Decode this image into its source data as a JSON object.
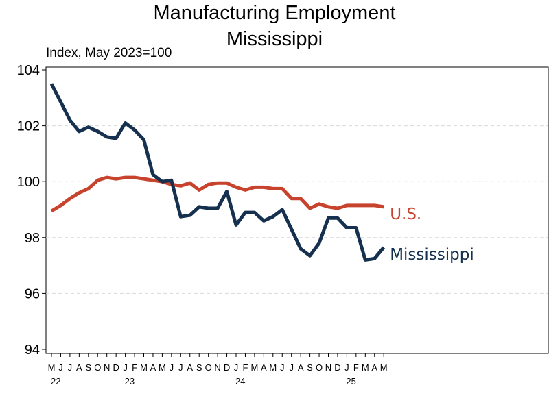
{
  "chart_data": {
    "type": "line",
    "title": "Manufacturing Employment",
    "subtitle": "Mississippi",
    "ylabel": "Index, May 2023=100",
    "xlabel": "",
    "ylim": [
      94,
      104
    ],
    "yticks": [
      "104",
      "102",
      "100",
      "98",
      "96",
      "94"
    ],
    "grid": true,
    "x_month_labels": [
      "M",
      "J",
      "J",
      "A",
      "S",
      "O",
      "N",
      "D",
      "J",
      "F",
      "M",
      "A",
      "M",
      "J",
      "J",
      "A",
      "S",
      "O",
      "N",
      "D",
      "J",
      "F",
      "M",
      "A",
      "M",
      "J",
      "J",
      "A",
      "S",
      "O",
      "N",
      "D",
      "J",
      "F",
      "M",
      "A",
      "M"
    ],
    "x_year_labels": [
      {
        "label": "22",
        "month_index": 0
      },
      {
        "label": "23",
        "month_index": 8
      },
      {
        "label": "24",
        "month_index": 20
      },
      {
        "label": "25",
        "month_index": 32
      }
    ],
    "x": [
      "2022-05",
      "2022-06",
      "2022-07",
      "2022-08",
      "2022-09",
      "2022-10",
      "2022-11",
      "2022-12",
      "2023-01",
      "2023-02",
      "2023-03",
      "2023-04",
      "2023-05",
      "2023-06",
      "2023-07",
      "2023-08",
      "2023-09",
      "2023-10",
      "2023-11",
      "2023-12",
      "2024-01",
      "2024-02",
      "2024-03",
      "2024-04",
      "2024-05",
      "2024-06",
      "2024-07",
      "2024-08",
      "2024-09",
      "2024-10",
      "2024-11",
      "2024-12",
      "2025-01",
      "2025-02",
      "2025-03",
      "2025-04",
      "2025-05"
    ],
    "series": [
      {
        "name": "U.S.",
        "color": "#c8432d",
        "values": [
          98.95,
          99.15,
          99.4,
          99.6,
          99.75,
          100.05,
          100.15,
          100.1,
          100.15,
          100.15,
          100.1,
          100.05,
          100.0,
          99.9,
          99.85,
          99.95,
          99.7,
          99.9,
          99.95,
          99.95,
          99.8,
          99.7,
          99.8,
          99.8,
          99.75,
          99.75,
          99.4,
          99.4,
          99.05,
          99.2,
          99.1,
          99.05,
          99.15,
          99.15,
          99.15,
          99.15,
          99.1
        ]
      },
      {
        "name": "Mississippi",
        "color": "#16304f",
        "values": [
          103.5,
          102.85,
          102.2,
          101.8,
          101.95,
          101.8,
          101.6,
          101.55,
          102.1,
          101.85,
          101.5,
          100.25,
          100.0,
          100.05,
          98.75,
          98.8,
          99.1,
          99.05,
          99.05,
          99.65,
          98.45,
          98.9,
          98.9,
          98.6,
          98.75,
          99.0,
          98.3,
          97.6,
          97.35,
          97.8,
          98.7,
          98.7,
          98.35,
          98.35,
          97.2,
          97.25,
          97.65
        ]
      }
    ]
  }
}
